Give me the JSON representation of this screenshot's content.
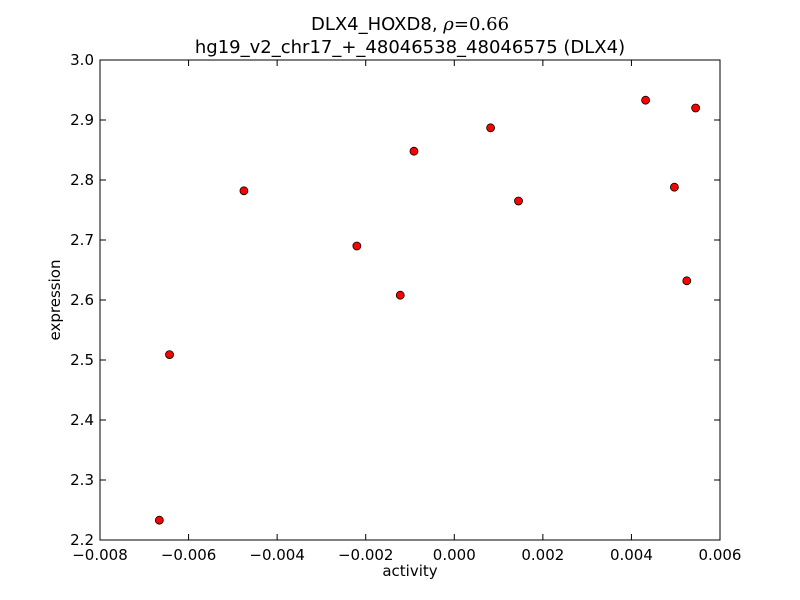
{
  "chart_data": {
    "type": "scatter",
    "title_main": "DLX4_HOXD8, ",
    "title_rho_symbol": "ρ",
    "title_rho_value": "=0.66",
    "subtitle": "hg19_v2_chr17_+_48046538_48046575 (DLX4)",
    "xlabel": "activity",
    "ylabel": "expression",
    "xlim": [
      -0.008,
      0.006
    ],
    "ylim": [
      2.2,
      3.0
    ],
    "x_ticks": [
      -0.008,
      -0.006,
      -0.004,
      -0.002,
      0.0,
      0.002,
      0.004,
      0.006
    ],
    "x_tick_labels": [
      "−0.008",
      "−0.006",
      "−0.004",
      "−0.002",
      "0.000",
      "0.002",
      "0.004",
      "0.006"
    ],
    "y_ticks": [
      2.2,
      2.3,
      2.4,
      2.5,
      2.6,
      2.7,
      2.8,
      2.9,
      3.0
    ],
    "y_tick_labels": [
      "2.2",
      "2.3",
      "2.4",
      "2.5",
      "2.6",
      "2.7",
      "2.8",
      "2.9",
      "3.0"
    ],
    "grid": false,
    "marker_color": "#ff0000",
    "marker_edge_color": "#000000",
    "points": [
      {
        "x": -0.00666,
        "y": 2.233
      },
      {
        "x": -0.00643,
        "y": 2.509
      },
      {
        "x": -0.00475,
        "y": 2.782
      },
      {
        "x": -0.0022,
        "y": 2.69
      },
      {
        "x": -0.00122,
        "y": 2.608
      },
      {
        "x": -0.00091,
        "y": 2.848
      },
      {
        "x": 0.00082,
        "y": 2.887
      },
      {
        "x": 0.00145,
        "y": 2.765
      },
      {
        "x": 0.00432,
        "y": 2.933
      },
      {
        "x": 0.00497,
        "y": 2.788
      },
      {
        "x": 0.00525,
        "y": 2.632
      },
      {
        "x": 0.00545,
        "y": 2.92
      }
    ]
  }
}
